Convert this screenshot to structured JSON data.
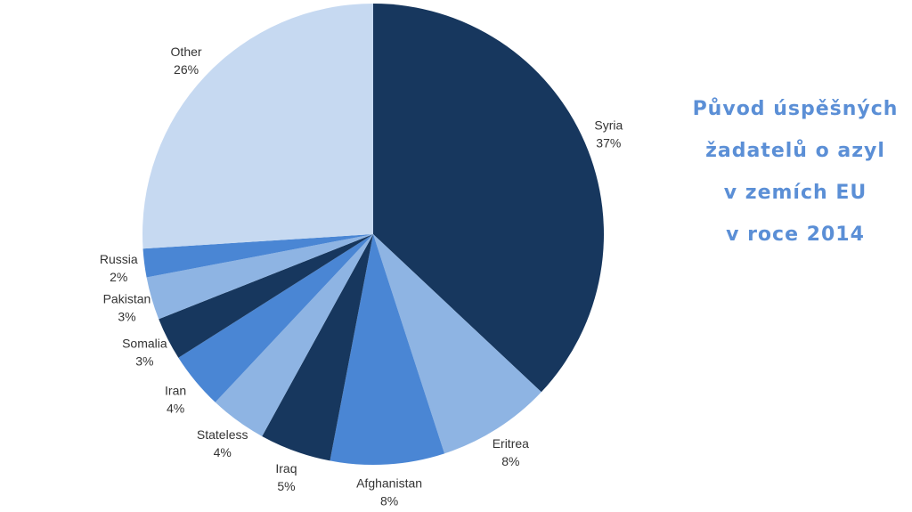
{
  "chart_data": {
    "type": "pie",
    "title": [
      "Původ úspěšných",
      "žadatelů o azyl",
      "v zemích EU",
      "v roce 2014"
    ],
    "categories": [
      "Syria",
      "Eritrea",
      "Afghanistan",
      "Iraq",
      "Stateless",
      "Iran",
      "Somalia",
      "Pakistan",
      "Russia",
      "Other"
    ],
    "values": [
      37,
      8,
      8,
      5,
      4,
      4,
      3,
      3,
      2,
      26
    ],
    "value_labels": [
      "37%",
      "8%",
      "8%",
      "5%",
      "4%",
      "4%",
      "3%",
      "3%",
      "2%",
      "26%"
    ],
    "colors": [
      "#17375e",
      "#8eb4e3",
      "#4a86d4",
      "#17375e",
      "#8eb4e3",
      "#4a86d4",
      "#17375e",
      "#8eb4e3",
      "#4a86d4",
      "#c6d9f1"
    ]
  }
}
